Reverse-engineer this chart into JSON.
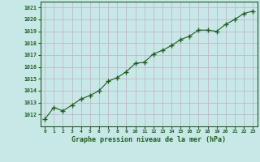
{
  "x": [
    0,
    1,
    2,
    3,
    4,
    5,
    6,
    7,
    8,
    9,
    10,
    11,
    12,
    13,
    14,
    15,
    16,
    17,
    18,
    19,
    20,
    21,
    22,
    23
  ],
  "y": [
    1011.6,
    1012.6,
    1012.3,
    1012.8,
    1013.3,
    1013.6,
    1014.0,
    1014.8,
    1015.1,
    1015.6,
    1016.3,
    1016.4,
    1017.1,
    1017.4,
    1017.8,
    1018.3,
    1018.6,
    1019.1,
    1019.1,
    1019.0,
    1019.6,
    1020.0,
    1020.5,
    1020.7
  ],
  "ylim": [
    1011.0,
    1021.5
  ],
  "xlim": [
    -0.5,
    23.5
  ],
  "yticks": [
    1012,
    1013,
    1014,
    1015,
    1016,
    1017,
    1018,
    1019,
    1020,
    1021
  ],
  "xticks": [
    0,
    1,
    2,
    3,
    4,
    5,
    6,
    7,
    8,
    9,
    10,
    11,
    12,
    13,
    14,
    15,
    16,
    17,
    18,
    19,
    20,
    21,
    22,
    23
  ],
  "xlabel": "Graphe pression niveau de la mer (hPa)",
  "line_color": "#1e5c1e",
  "marker": "+",
  "marker_size": 4.0,
  "bg_color": "#c8e8e8",
  "grid_color": "#c0b8c8",
  "tick_color": "#1e5c1e",
  "xlabel_color": "#1e5c1e",
  "figsize": [
    3.2,
    2.0
  ],
  "dpi": 100
}
